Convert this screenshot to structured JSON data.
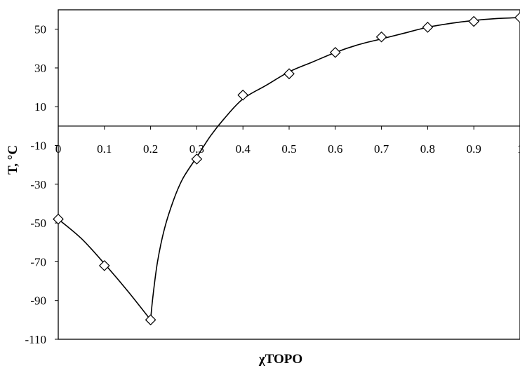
{
  "chart_data": {
    "type": "scatter",
    "title": "",
    "xlabel": "χTOPO",
    "ylabel": "T, °C",
    "xlim": [
      0,
      1
    ],
    "ylim": [
      -110,
      60
    ],
    "x_ticks": [
      "0",
      "0.1",
      "0.2",
      "0.3",
      "0.4",
      "0.5",
      "0.6",
      "0.7",
      "0.8",
      "0.9",
      "1"
    ],
    "y_ticks": [
      "50",
      "30",
      "10",
      "-10",
      "-30",
      "-50",
      "-70",
      "-90",
      "-110"
    ],
    "grid": false,
    "legend": "none",
    "marker": "diamond-open",
    "series": [
      {
        "x": [
          0,
          0.1,
          0.2,
          0.3,
          0.4,
          0.5,
          0.6,
          0.7,
          0.8,
          0.9,
          1.0
        ],
        "y": [
          -48,
          -72,
          -100,
          -17,
          16,
          27,
          38,
          46,
          51,
          54,
          56
        ]
      }
    ],
    "fit_curves": [
      {
        "x": [
          0,
          0.05,
          0.1,
          0.15,
          0.2
        ],
        "y": [
          -48,
          -58,
          -71,
          -85,
          -100
        ]
      },
      {
        "x": [
          0.2,
          0.205,
          0.215,
          0.23,
          0.25,
          0.27,
          0.3,
          0.33,
          0.36,
          0.4,
          0.45,
          0.5,
          0.55,
          0.6,
          0.65,
          0.7,
          0.75,
          0.8,
          0.85,
          0.9,
          0.95,
          1.0
        ],
        "y": [
          -100,
          -88,
          -70,
          -53,
          -38,
          -27,
          -16,
          -5,
          4,
          14,
          21,
          28,
          33,
          38,
          42,
          45,
          48,
          51,
          53,
          54.5,
          55.5,
          56
        ]
      }
    ]
  }
}
